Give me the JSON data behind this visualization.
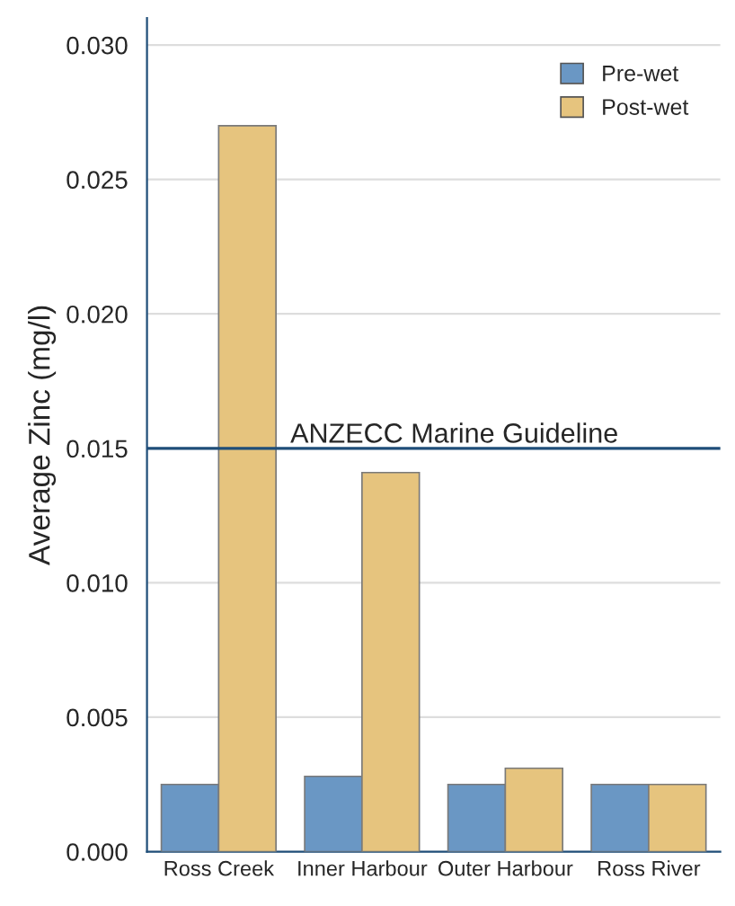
{
  "chart_data": {
    "type": "bar",
    "ylabel": "Average Zinc (mg/l)",
    "categories": [
      "Ross Creek",
      "Inner Harbour",
      "Outer Harbour",
      "Ross River"
    ],
    "series": [
      {
        "name": "Pre-wet",
        "color": "#6a97c4",
        "values": [
          0.0025,
          0.0028,
          0.0025,
          0.0025
        ]
      },
      {
        "name": "Post-wet",
        "color": "#e6c47e",
        "values": [
          0.027,
          0.0141,
          0.0031,
          0.0025
        ]
      }
    ],
    "ylim": [
      0,
      0.031
    ],
    "yticks": [
      {
        "value": 0,
        "label": "0.000"
      },
      {
        "value": 0.005,
        "label": "0.005"
      },
      {
        "value": 0.01,
        "label": "0.010"
      },
      {
        "value": 0.015,
        "label": "0.015"
      },
      {
        "value": 0.02,
        "label": "0.020"
      },
      {
        "value": 0.025,
        "label": "0.025"
      },
      {
        "value": 0.03,
        "label": "0.030"
      }
    ],
    "ref_lines": [
      {
        "axis": "y",
        "value": 0.015,
        "label": "ANZECC Marine Guideline",
        "color": "#1f4e79"
      }
    ],
    "grid": "y",
    "legend": "top right"
  }
}
